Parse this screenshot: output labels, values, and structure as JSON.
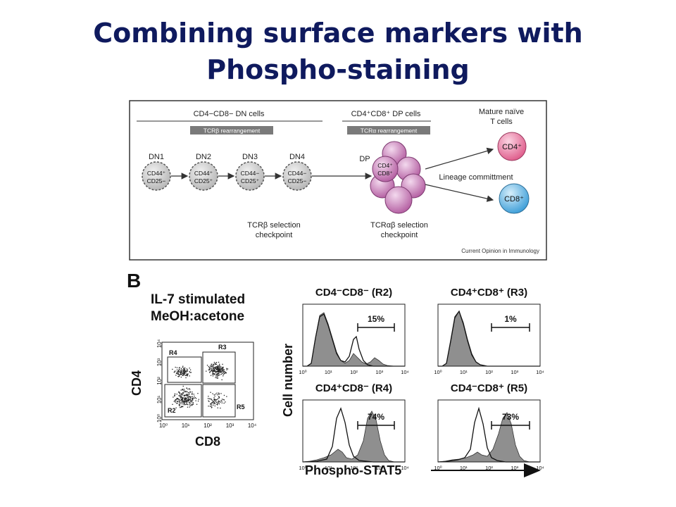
{
  "slide": {
    "title_line1": "Combining surface markers with",
    "title_line2": "Phospho-staining"
  },
  "panel_a": {
    "dn_header": "CD4−CD8− DN cells",
    "dp_header": "CD4⁺CD8⁺ DP cells",
    "tcrb_bar": "TCRβ rearrangement",
    "tcra_bar": "TCRα rearrangement",
    "mature_line1": "Mature naïve",
    "mature_line2": "T cells",
    "stages": [
      {
        "label": "DN1",
        "line1": "CD44⁺",
        "line2": "CD25−"
      },
      {
        "label": "DN2",
        "line1": "CD44⁺",
        "line2": "CD25⁺"
      },
      {
        "label": "DN3",
        "line1": "CD44−",
        "line2": "CD25⁺"
      },
      {
        "label": "DN4",
        "line1": "CD44−",
        "line2": "CD25−"
      }
    ],
    "dp_label": "DP",
    "dp_cell_line1": "CD4⁺",
    "dp_cell_line2": "CD8⁺",
    "lineage": "Lineage committment",
    "cd4_cell": "CD4⁺",
    "cd8_cell": "CD8⁺",
    "checkpoint1_line1": "TCRβ selection",
    "checkpoint1_line2": "checkpoint",
    "checkpoint2_line1": "TCRαβ selection",
    "checkpoint2_line2": "checkpoint",
    "credit": "Current Opinion in Immunology",
    "colors": {
      "dp_cell": "#c77bb4",
      "cd4_cell": "#e0668f",
      "cd8_cell": "#4aa8de",
      "dn_cell": "#d4d4d4"
    }
  },
  "panel_b": {
    "letter": "B",
    "condition_line1": "IL-7 stimulated",
    "condition_line2": "MeOH:acetone",
    "dot_plot": {
      "y_label": "CD4",
      "x_label": "CD8",
      "gates": [
        "R4",
        "R3",
        "R2",
        "R5"
      ],
      "ticks": [
        "10⁰",
        "10¹",
        "10²",
        "10³",
        "10⁴"
      ]
    },
    "y_axis_label": "Cell number",
    "x_axis_label": "Phospho-STAT5",
    "histograms": [
      {
        "title": "CD4⁻CD8⁻ (R2)",
        "percent": "15%"
      },
      {
        "title": "CD4⁺CD8⁺ (R3)",
        "percent": "1%"
      },
      {
        "title": "CD4⁺CD8⁻ (R4)",
        "percent": "74%"
      },
      {
        "title": "CD4⁻CD8⁺ (R5)",
        "percent": "73%"
      }
    ],
    "hist_ticks": [
      "10⁰",
      "10¹",
      "10²",
      "10³",
      "10⁴"
    ]
  }
}
